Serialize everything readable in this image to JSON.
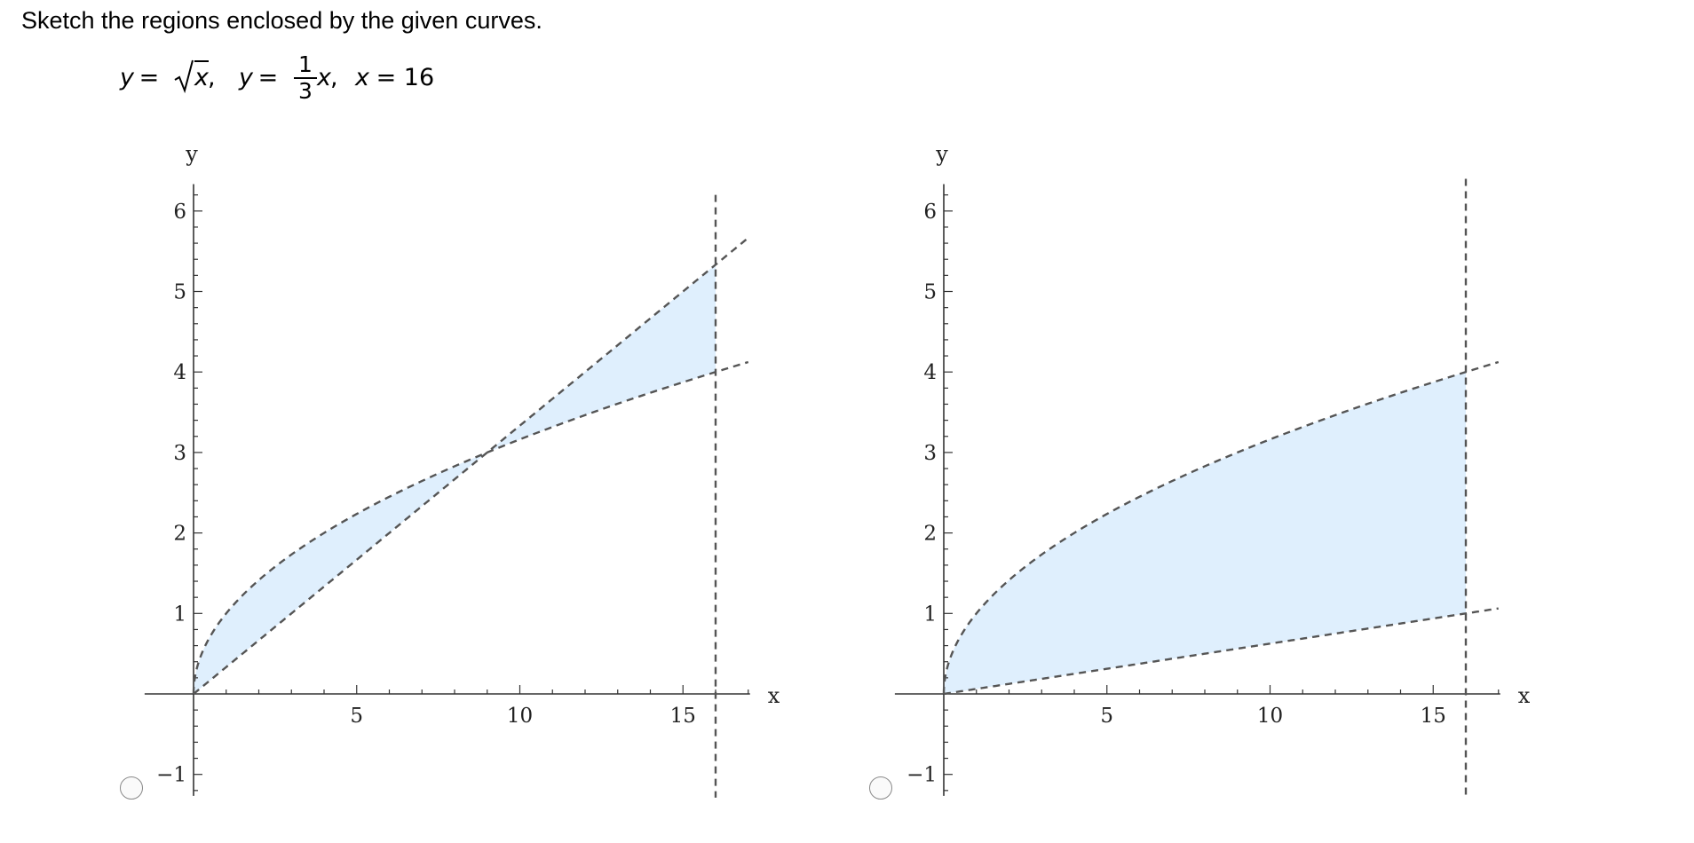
{
  "prompt": "Sketch the regions enclosed by the given curves.",
  "equation": {
    "part1_var": "y",
    "part1_eq": " = ",
    "sqrt_arg": "x",
    "part2_sep": ",  ",
    "part2_var": "y",
    "part2_eq": " = ",
    "frac_num": "1",
    "frac_den": "3",
    "part2_x": "x",
    "part3_sep": ",  ",
    "part3_var": "x",
    "part3_rest": " = 16"
  },
  "fill_color": "#dfeffd",
  "curve_color": "#555555",
  "options": [
    {
      "id": "option-a",
      "chart_data": {
        "type": "area",
        "xlabel": "x",
        "ylabel": "y",
        "xlim": [
          -1.5,
          17
        ],
        "ylim": [
          -1.2,
          6.4
        ],
        "xticks": [
          5,
          10,
          15
        ],
        "yticks": [
          -1,
          1,
          2,
          3,
          4,
          5,
          6
        ],
        "xtick_labels": [
          "5",
          "10",
          "15"
        ],
        "ytick_labels": [
          "−1",
          "1",
          "2",
          "3",
          "4",
          "5",
          "6"
        ],
        "curves": [
          {
            "expr": "sqrt(x)",
            "x_range": [
              0,
              17
            ]
          },
          {
            "expr": "x/3",
            "x_range": [
              0,
              17
            ]
          },
          {
            "expr": "x=16",
            "y_range": [
              -1.2,
              6.2
            ]
          }
        ],
        "shaded_regions": [
          {
            "between": [
              "sqrt(x)",
              "x/3"
            ],
            "x_range": [
              0,
              9
            ]
          },
          {
            "between": [
              "x/3",
              "sqrt(x)"
            ],
            "x_range": [
              9,
              16
            ]
          }
        ],
        "grid": false
      }
    },
    {
      "id": "option-b",
      "chart_data": {
        "type": "area",
        "xlabel": "x",
        "ylabel": "y",
        "xlim": [
          -1.5,
          17
        ],
        "ylim": [
          -1.2,
          6.4
        ],
        "xticks": [
          5,
          10,
          15
        ],
        "yticks": [
          -1,
          1,
          2,
          3,
          4,
          5,
          6
        ],
        "xtick_labels": [
          "5",
          "10",
          "15"
        ],
        "ytick_labels": [
          "−1",
          "1",
          "2",
          "3",
          "4",
          "5",
          "6"
        ],
        "curves": [
          {
            "expr": "sqrt(x)",
            "x_range": [
              0,
              17
            ]
          },
          {
            "expr": "x/16",
            "x_range": [
              0,
              17
            ]
          },
          {
            "expr": "x=16",
            "y_range": [
              -1.2,
              6.4
            ]
          }
        ],
        "shaded_regions": [
          {
            "between": [
              "sqrt(x)",
              "x/16"
            ],
            "x_range": [
              0,
              16
            ]
          }
        ],
        "grid": false
      }
    }
  ]
}
